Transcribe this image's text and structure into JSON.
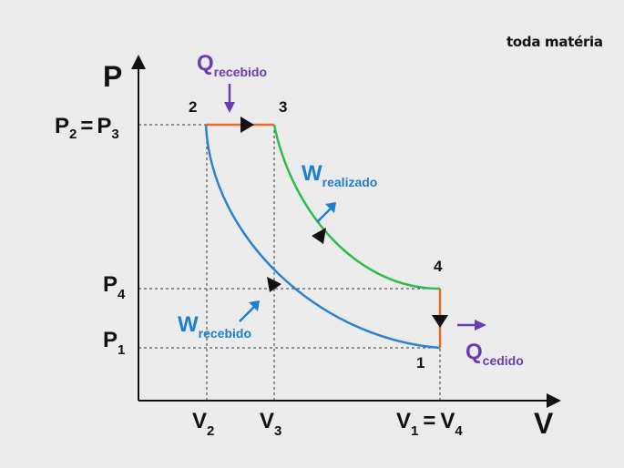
{
  "brand": "toda matéria",
  "colors": {
    "isothermal": "#2a82d1",
    "adiabatic": "#2dbb4e",
    "isochoric_isobaric": "#e66a2c",
    "heat": "#6a3bb3",
    "work": "#1c7fcf",
    "axis": "#111111"
  },
  "axes": {
    "y_label": "P",
    "x_label": "V",
    "p23": {
      "main": "P",
      "sub1": "2",
      "eq": "=",
      "main2": "P",
      "sub2": "3"
    },
    "p4": {
      "main": "P",
      "sub": "4"
    },
    "p1": {
      "main": "P",
      "sub": "1"
    },
    "v2": {
      "main": "V",
      "sub": "2"
    },
    "v3": {
      "main": "V",
      "sub": "3"
    },
    "v14": {
      "main": "V",
      "sub1": "1",
      "eq": "=",
      "main2": "V",
      "sub2": "4"
    }
  },
  "points": {
    "p1": "1",
    "p2": "2",
    "p3": "3",
    "p4": "4"
  },
  "labels": {
    "q_recebido": {
      "main": "Q",
      "sub": "recebido"
    },
    "q_cedido": {
      "main": "Q",
      "sub": "cedido"
    },
    "w_realizado": {
      "main": "W",
      "sub": "realizado"
    },
    "w_recebido": {
      "main": "W",
      "sub": "recebido"
    }
  }
}
